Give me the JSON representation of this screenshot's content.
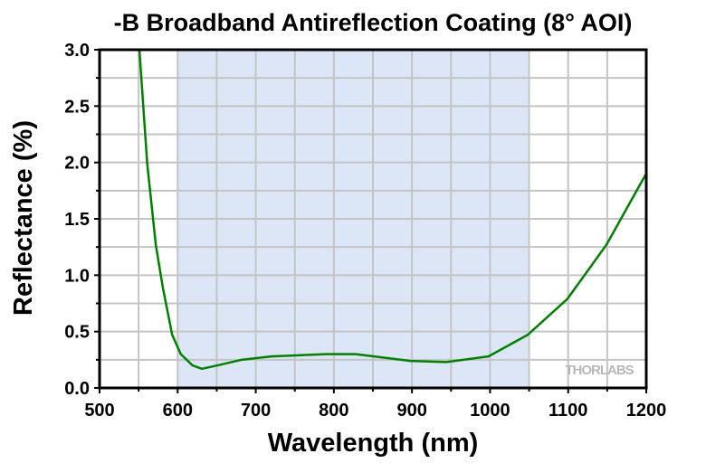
{
  "chart_data": {
    "type": "line",
    "title": "-B Broadband Antireflection Coating (8° AOI)",
    "xlabel": "Wavelength (nm)",
    "ylabel": "Reflectance (%)",
    "xlim": [
      500,
      1200
    ],
    "ylim": [
      0,
      3.0
    ],
    "xticks": [
      "500",
      "600",
      "700",
      "800",
      "900",
      "1000",
      "1100",
      "1200"
    ],
    "yticks": [
      "0.0",
      "0.5",
      "1.0",
      "1.5",
      "2.0",
      "2.5",
      "3.0"
    ],
    "grid": true,
    "shaded_band": [
      600,
      1050
    ],
    "colors": {
      "line": "#008000",
      "band": "#dce6f6",
      "grid": "#c4c4c4"
    },
    "watermark": "THORLABS",
    "series": [
      {
        "x": [
          551,
          561,
          572,
          581,
          593,
          604,
          619,
          631,
          651,
          682,
          720,
          790,
          828,
          898,
          944,
          998,
          1048,
          1099,
          1149,
          1199
        ],
        "y": [
          3.0,
          1.99,
          1.27,
          0.89,
          0.47,
          0.3,
          0.2,
          0.17,
          0.2,
          0.25,
          0.28,
          0.3,
          0.3,
          0.24,
          0.23,
          0.28,
          0.47,
          0.79,
          1.27,
          1.89
        ]
      }
    ]
  }
}
